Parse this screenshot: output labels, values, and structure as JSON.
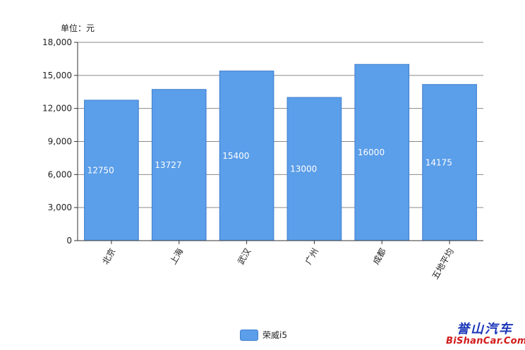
{
  "unit_label": "单位：元",
  "legend": {
    "label": "荣威i5",
    "color": "#5b9ee9"
  },
  "watermark": {
    "top": "誉山汽车",
    "bottom": "BiShanCar.Com"
  },
  "chart_data": {
    "type": "bar",
    "categories": [
      "北京",
      "上海",
      "武汉",
      "广州",
      "成都",
      "五地平均"
    ],
    "series": [
      {
        "name": "荣威i5",
        "values": [
          12750,
          13727,
          15400,
          13000,
          16000,
          14175
        ]
      }
    ],
    "yticks": [
      "0",
      "3,000",
      "6,000",
      "9,000",
      "12,000",
      "15,000",
      "18,000"
    ],
    "ylim": [
      0,
      18000
    ],
    "grid": true,
    "legend_position": "bottom-center",
    "bar_color": "#5b9ee9"
  }
}
